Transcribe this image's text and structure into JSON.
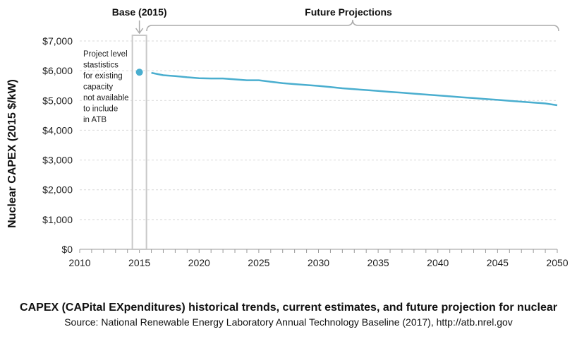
{
  "caption": {
    "title": "CAPEX (CAPital EXpenditures) historical trends, current estimates, and future projection for nuclear",
    "source": "Source: National Renewable Energy Laboratory Annual Technology Baseline (2017), http://atb.nrel.gov"
  },
  "chart_data": {
    "type": "line",
    "title": "",
    "ylabel": "Nuclear CAPEX (2015 $/kW)",
    "xlabel": "",
    "xlim": [
      2010,
      2050
    ],
    "ylim": [
      0,
      7000
    ],
    "x_ticks": [
      {
        "value": 2010,
        "label": "2010"
      },
      {
        "value": 2015,
        "label": "2015"
      },
      {
        "value": 2020,
        "label": "2020"
      },
      {
        "value": 2025,
        "label": "2025"
      },
      {
        "value": 2030,
        "label": "2030"
      },
      {
        "value": 2035,
        "label": "2035"
      },
      {
        "value": 2040,
        "label": "2040"
      },
      {
        "value": 2045,
        "label": "2045"
      },
      {
        "value": 2050,
        "label": "2050"
      }
    ],
    "y_ticks": [
      {
        "value": 0,
        "label": "$0"
      },
      {
        "value": 1000,
        "label": "$1,000"
      },
      {
        "value": 2000,
        "label": "$2,000"
      },
      {
        "value": 3000,
        "label": "$3,000"
      },
      {
        "value": 4000,
        "label": "$4,000"
      },
      {
        "value": 5000,
        "label": "$5,000"
      },
      {
        "value": 6000,
        "label": "$6,000"
      },
      {
        "value": 7000,
        "label": "$7,000"
      }
    ],
    "grid": true,
    "series": [
      {
        "color": "#4aaecf",
        "x": [
          2016,
          2017,
          2018,
          2019,
          2020,
          2021,
          2022,
          2023,
          2024,
          2025,
          2026,
          2027,
          2028,
          2029,
          2030,
          2031,
          2032,
          2033,
          2034,
          2035,
          2036,
          2037,
          2038,
          2039,
          2040,
          2041,
          2042,
          2043,
          2044,
          2045,
          2046,
          2047,
          2048,
          2049,
          2050
        ],
        "y": [
          5930,
          5850,
          5820,
          5780,
          5750,
          5740,
          5740,
          5710,
          5680,
          5680,
          5630,
          5580,
          5550,
          5520,
          5490,
          5450,
          5410,
          5380,
          5350,
          5320,
          5290,
          5260,
          5230,
          5200,
          5170,
          5140,
          5110,
          5080,
          5050,
          5020,
          4990,
          4960,
          4930,
          4900,
          4840
        ]
      }
    ],
    "points": [
      {
        "x": 2015,
        "y": 5950,
        "color": "#4aaecf"
      }
    ],
    "annotations": {
      "base_label": "Base (2015)",
      "future_label": "Future Projections",
      "base_note": [
        "Project level",
        "stastistics",
        "for existing",
        "capacity",
        "not available",
        "to include",
        "in ATB"
      ]
    }
  }
}
